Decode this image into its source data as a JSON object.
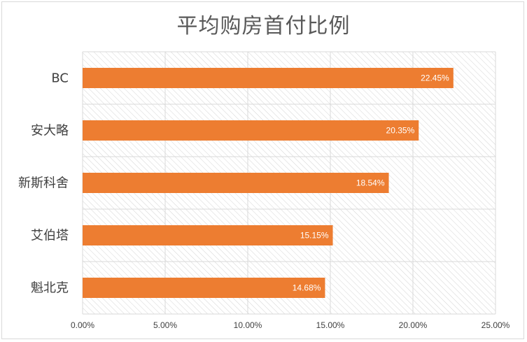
{
  "chart_data": {
    "type": "bar",
    "orientation": "horizontal",
    "title": "平均购房首付比例",
    "categories": [
      "BC",
      "安大略",
      "新斯科舍",
      "艾伯塔",
      "魁北克"
    ],
    "values": [
      22.45,
      20.35,
      18.54,
      15.15,
      14.68
    ],
    "data_labels": [
      "22.45%",
      "20.35%",
      "18.54%",
      "15.15%",
      "14.68%"
    ],
    "x_ticks": [
      "0.00%",
      "5.00%",
      "10.00%",
      "15.00%",
      "20.00%",
      "25.00%"
    ],
    "xlim": [
      0,
      25
    ],
    "grid": true,
    "bar_color": "#ed7d31"
  }
}
